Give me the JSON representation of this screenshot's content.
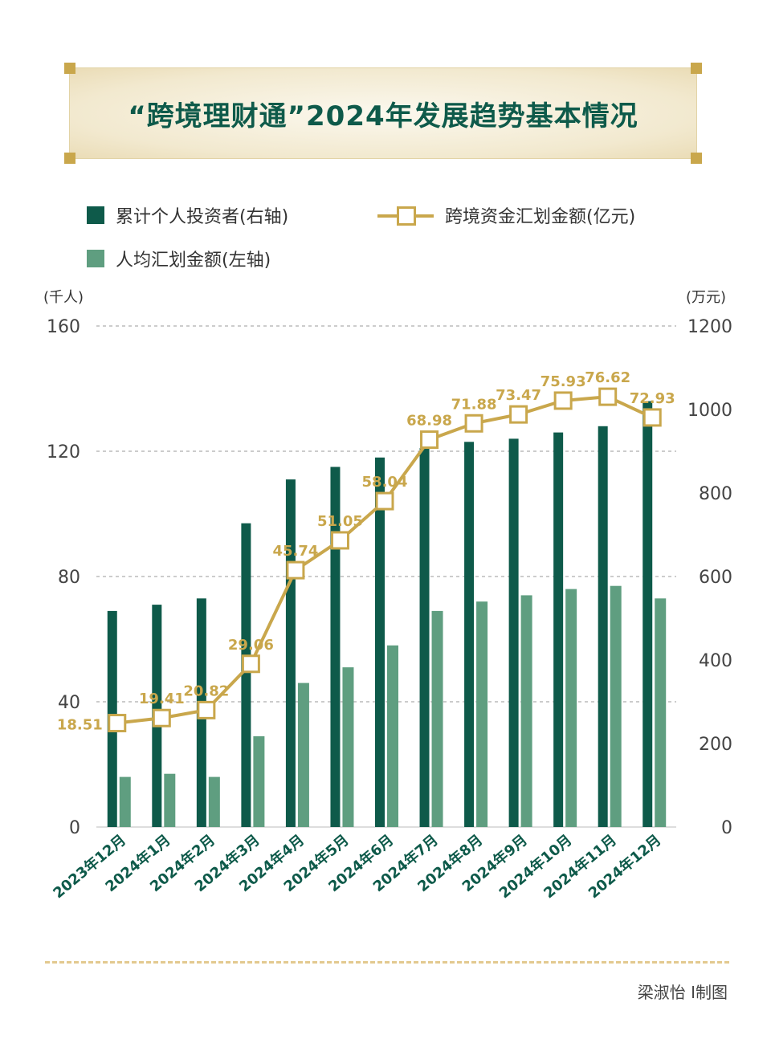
{
  "title": "“跨境理财通”2024年发展趋势基本情况",
  "legend": {
    "bar_dark": "累计个人投资者(右轴)",
    "line": "跨境资金汇划金额(亿元)",
    "bar_light": "人均汇划金额(左轴)"
  },
  "left_unit": "(千人)",
  "right_unit": "(万元)",
  "credit": "梁淑怡 I制图",
  "colors": {
    "dark_green": "#0e5a4a",
    "light_green": "#5f9e80",
    "gold": "#c9a74c",
    "title_green": "#0e5a4a"
  },
  "chart_data": {
    "type": "bar",
    "categories": [
      "2023年12月",
      "2024年1月",
      "2024年2月",
      "2024年3月",
      "2024年4月",
      "2024年5月",
      "2024年6月",
      "2024年7月",
      "2024年8月",
      "2024年9月",
      "2024年10月",
      "2024年11月",
      "2024年12月"
    ],
    "left_axis": {
      "ylim": [
        0,
        160
      ],
      "ticks": [
        0,
        40,
        80,
        120,
        160
      ]
    },
    "right_axis": {
      "ylim": [
        0,
        1200
      ],
      "ticks": [
        0,
        200,
        400,
        600,
        800,
        1000,
        1200
      ]
    },
    "series": [
      {
        "name": "累计个人投资者(右轴)",
        "type": "bar",
        "values": [
          69,
          71,
          73,
          97,
          111,
          115,
          118,
          121,
          123,
          124,
          126,
          128,
          136
        ]
      },
      {
        "name": "人均汇划金额(左轴)",
        "type": "bar",
        "values": [
          16,
          17,
          16,
          29,
          46,
          51,
          58,
          69,
          72,
          74,
          76,
          77,
          73
        ]
      },
      {
        "name": "跨境资金汇划金额(亿元)",
        "type": "line",
        "values": [
          18.51,
          19.41,
          20.82,
          29.06,
          45.74,
          51.05,
          58.04,
          68.98,
          71.88,
          73.47,
          75.93,
          76.62,
          72.93
        ],
        "labels": [
          "18.51",
          "19.41",
          "20.82",
          "29.06",
          "45.74",
          "51.05",
          "58.04",
          "68.98",
          "71.88",
          "73.47",
          "75.93",
          "76.62",
          "72.93"
        ]
      }
    ]
  }
}
